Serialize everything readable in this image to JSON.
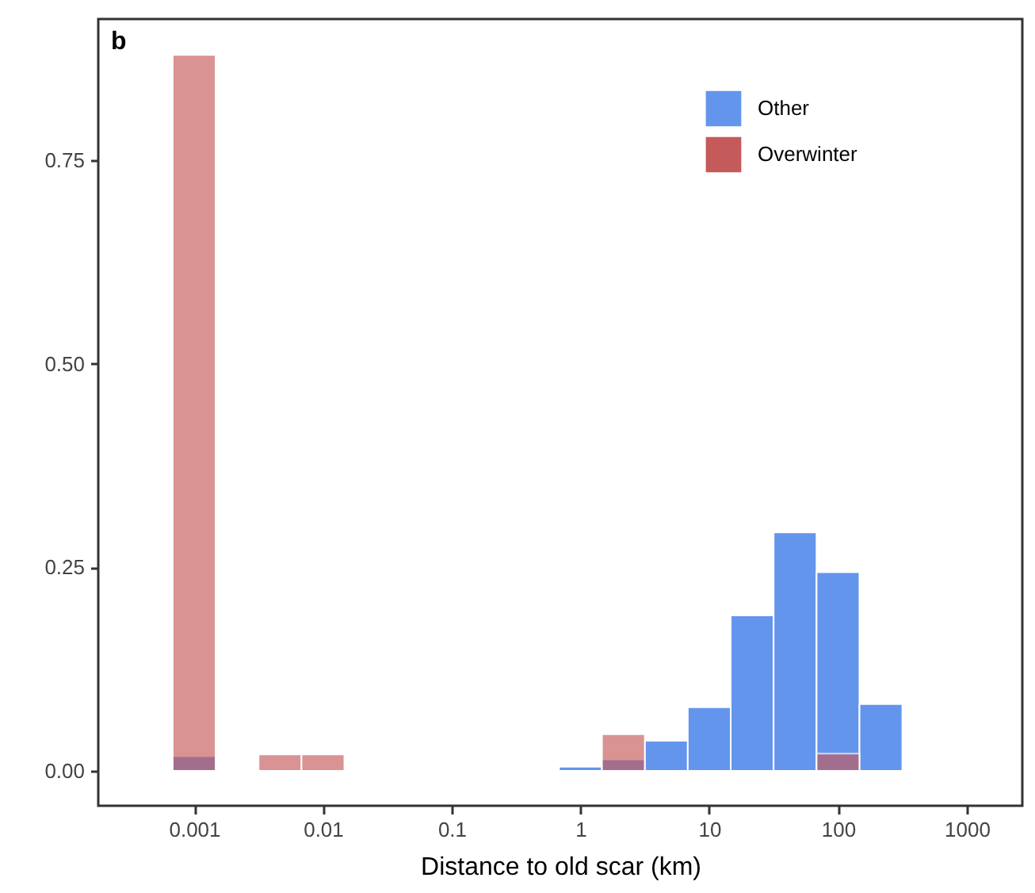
{
  "chart_data": {
    "type": "histogram",
    "xlabel": "Distance to old scar (km)",
    "annotations": [
      "b"
    ],
    "bins": [
      0.000681,
      0.001468,
      0.003162,
      0.006813,
      0.01468,
      0.03162,
      0.06813,
      0.1468,
      0.3162,
      0.6813,
      1.468,
      3.162,
      6.813,
      14.68,
      31.62,
      68.13,
      146.8,
      316.2
    ],
    "series": [
      {
        "name": "Other",
        "color": "#6495ed",
        "values": [
          0.018,
          0,
          0,
          0,
          0,
          0,
          0,
          0,
          0,
          0.005,
          0.014,
          0.037,
          0.078,
          0.191,
          0.293,
          0.244,
          0.082
        ]
      },
      {
        "name": "Overwinter",
        "color": "#c55a5a",
        "values": [
          0.88,
          0,
          0.02,
          0.02,
          0,
          0,
          0,
          0,
          0,
          0,
          0.045,
          0,
          0,
          0,
          0,
          0.021,
          0
        ]
      }
    ],
    "log": "x",
    "xlim": [
      0.00018,
      2700
    ],
    "xticks": [
      0.001,
      0.01,
      0.1,
      1,
      10,
      100,
      1000
    ],
    "ylim": [
      -0.043,
      0.924
    ],
    "yticks": [
      {
        "value": 0,
        "label": "0.00"
      },
      {
        "value": 0.25,
        "label": "0.25"
      },
      {
        "value": 0.5,
        "label": "0.50"
      },
      {
        "value": 0.75,
        "label": "0.75"
      }
    ],
    "grid": false,
    "legend": "top right"
  }
}
